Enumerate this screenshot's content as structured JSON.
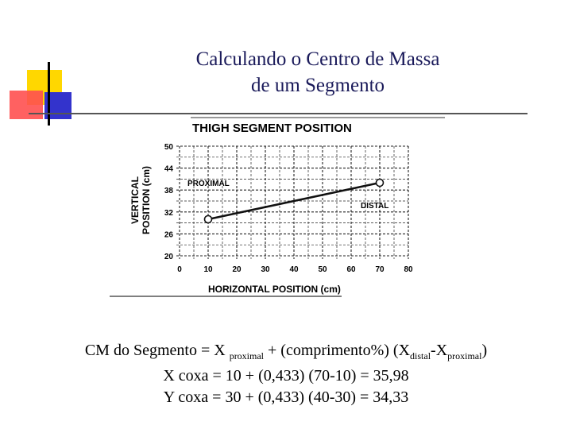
{
  "slide": {
    "title_line1": "Calculando o Centro de Massa",
    "title_line2": "de um Segmento",
    "colors": {
      "yellow": "#ffd700",
      "red": "#ff5050",
      "blue": "#3333cc"
    }
  },
  "chart_data": {
    "type": "line",
    "title": "THIGH SEGMENT POSITION",
    "xlabel": "HORIZONTAL POSITION (cm)",
    "ylabel_line1": "VERTICAL",
    "ylabel_line2": "POSITION (cm)",
    "xlim": [
      0,
      80
    ],
    "ylim": [
      20,
      50
    ],
    "xticks": [
      "0",
      "10",
      "20",
      "30",
      "40",
      "50",
      "60",
      "70",
      "80"
    ],
    "yticks": [
      "20",
      "26",
      "32",
      "38",
      "44",
      "50"
    ],
    "grid": true,
    "series": [
      {
        "x": [
          10,
          70
        ],
        "y": [
          30,
          40
        ]
      }
    ],
    "annotations": {
      "proximal": "PROXIMAL",
      "distal": "DISTAL"
    }
  },
  "formulas": {
    "line1_a": "CM do Segmento = X ",
    "line1_sub1": "proximal",
    "line1_b": " + (comprimento%) (X",
    "line1_sub2": "distal",
    "line1_c": "-X",
    "line1_sub3": "proximal",
    "line1_d": ")",
    "line2": "X coxa = 10 + (0,433) (70-10) = 35,98",
    "line3": "Y coxa = 30 + (0,433) (40-30) = 34,33"
  }
}
